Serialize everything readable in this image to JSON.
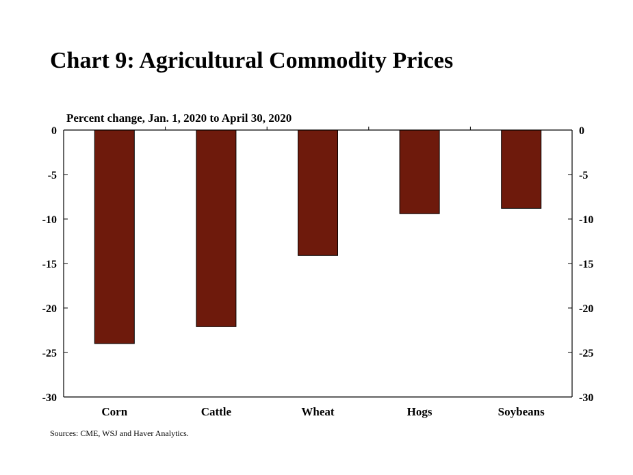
{
  "title": "Chart 9: Agricultural Commodity Prices",
  "unit_label": "Percent change, Jan. 1, 2020 to April 30, 2020",
  "source": "Sources: CME, WSJ and Haver Analytics.",
  "colors": {
    "bar_fill": "#6e1a0c",
    "bar_stroke": "#000000",
    "axis": "#000000"
  },
  "chart_data": {
    "type": "bar",
    "title": "Chart 9: Agricultural Commodity Prices",
    "ylabel": "Percent change, Jan. 1, 2020 to April 30, 2020",
    "xlabel": "",
    "categories": [
      "Corn",
      "Cattle",
      "Wheat",
      "Hogs",
      "Soybeans"
    ],
    "values": [
      -24.0,
      -22.1,
      -14.1,
      -9.4,
      -8.8
    ],
    "ylim": [
      -30,
      0
    ],
    "yticks": [
      0,
      -5,
      -10,
      -15,
      -20,
      -25,
      -30
    ],
    "dual_y_axis": true,
    "grid": false,
    "legend": "none"
  }
}
